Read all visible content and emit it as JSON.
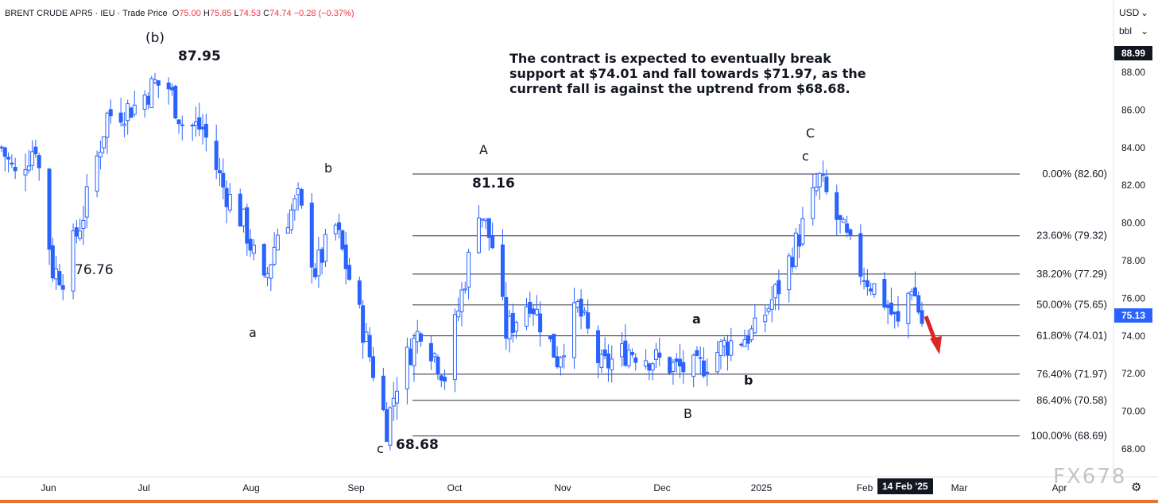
{
  "header": {
    "symbol": "BRENT CRUDE APR5",
    "sep1": "·",
    "exchange": "IEU",
    "sep2": "·",
    "type": "Trade Price",
    "o_label": "O",
    "o_value": "75.00",
    "h_label": "H",
    "h_value": "75.85",
    "l_label": "L",
    "l_value": "74.53",
    "c_label": "C",
    "c_value": "74.74",
    "change": "−0.28 (−0.37%)"
  },
  "controls": {
    "currency": "USD",
    "unit": "bbl"
  },
  "badges": {
    "top_price": "88.99",
    "last_price": "75.13",
    "cursor_date": "14 Feb '25"
  },
  "note": "The contract is expected to eventually break support at $74.01 and fall towards $71.97, as the current fall is against the uptrend from $68.68.",
  "watermark": "FX678",
  "colors": {
    "candle": "#2962ff",
    "grid_line": "#2a2e39",
    "badge_blue": "#2962ff",
    "badge_dark": "#131722",
    "arrow": "#e02424",
    "bottom_bar": "#e8742a"
  },
  "chart_data": {
    "type": "candlestick",
    "ylim": [
      66.5,
      91.5
    ],
    "y_ticks": [
      "88.00",
      "86.00",
      "84.00",
      "82.00",
      "80.00",
      "78.00",
      "76.00",
      "74.00",
      "72.00",
      "70.00",
      "68.00"
    ],
    "x_ticks": [
      "Jun",
      "Jul",
      "Aug",
      "Sep",
      "Oct",
      "Nov",
      "Dec",
      "2025",
      "Feb",
      "Mar",
      "Apr"
    ],
    "fib_levels": [
      {
        "label": "0.00% (82.60)",
        "value": 82.6
      },
      {
        "label": "23.60% (79.32)",
        "value": 79.32
      },
      {
        "label": "38.20% (77.29)",
        "value": 77.29
      },
      {
        "label": "50.00% (75.65)",
        "value": 75.65
      },
      {
        "label": "61.80% (74.01)",
        "value": 74.01
      },
      {
        "label": "76.40% (71.97)",
        "value": 71.97
      },
      {
        "label": "86.40% (70.58)",
        "value": 70.58
      },
      {
        "label": "100.00% (68.69)",
        "value": 68.69
      }
    ],
    "annotations": [
      {
        "text": "(b)"
      },
      {
        "text": "87.95"
      },
      {
        "text": "76.76"
      },
      {
        "text": "a"
      },
      {
        "text": "b"
      },
      {
        "text": "c"
      },
      {
        "text": "68.68"
      },
      {
        "text": "A"
      },
      {
        "text": "81.16"
      },
      {
        "text": "B"
      },
      {
        "text": "a"
      },
      {
        "text": "b"
      },
      {
        "text": "C"
      },
      {
        "text": "c"
      }
    ],
    "close_path": [
      {
        "date": "2024-05-20",
        "close": 84.0
      },
      {
        "date": "2024-05-24",
        "close": 82.5
      },
      {
        "date": "2024-05-30",
        "close": 84.2
      },
      {
        "date": "2024-06-04",
        "close": 77.5
      },
      {
        "date": "2024-06-07",
        "close": 77.2
      },
      {
        "date": "2024-06-13",
        "close": 80.5
      },
      {
        "date": "2024-06-20",
        "close": 85.7
      },
      {
        "date": "2024-06-28",
        "close": 86.2
      },
      {
        "date": "2024-07-04",
        "close": 87.4
      },
      {
        "date": "2024-07-08",
        "close": 87.2
      },
      {
        "date": "2024-07-12",
        "close": 85.3
      },
      {
        "date": "2024-07-18",
        "close": 85.0
      },
      {
        "date": "2024-07-24",
        "close": 81.9
      },
      {
        "date": "2024-07-30",
        "close": 80.0
      },
      {
        "date": "2024-08-05",
        "close": 76.6
      },
      {
        "date": "2024-08-09",
        "close": 79.5
      },
      {
        "date": "2024-08-15",
        "close": 81.2
      },
      {
        "date": "2024-08-20",
        "close": 77.5
      },
      {
        "date": "2024-08-26",
        "close": 79.8
      },
      {
        "date": "2024-09-04",
        "close": 73.7
      },
      {
        "date": "2024-09-10",
        "close": 69.2
      },
      {
        "date": "2024-09-13",
        "close": 71.6
      },
      {
        "date": "2024-09-20",
        "close": 74.5
      },
      {
        "date": "2024-09-27",
        "close": 71.9
      },
      {
        "date": "2024-10-04",
        "close": 78.0
      },
      {
        "date": "2024-10-07",
        "close": 80.9
      },
      {
        "date": "2024-10-11",
        "close": 78.8
      },
      {
        "date": "2024-10-15",
        "close": 74.2
      },
      {
        "date": "2024-10-22",
        "close": 76.0
      },
      {
        "date": "2024-10-30",
        "close": 72.8
      },
      {
        "date": "2024-11-05",
        "close": 75.5
      },
      {
        "date": "2024-11-12",
        "close": 72.3
      },
      {
        "date": "2024-11-20",
        "close": 73.3
      },
      {
        "date": "2024-11-27",
        "close": 72.8
      },
      {
        "date": "2024-12-04",
        "close": 72.3
      },
      {
        "date": "2024-12-10",
        "close": 72.2
      },
      {
        "date": "2024-12-18",
        "close": 73.5
      },
      {
        "date": "2024-12-27",
        "close": 74.2
      },
      {
        "date": "2025-01-03",
        "close": 76.6
      },
      {
        "date": "2025-01-10",
        "close": 79.8
      },
      {
        "date": "2025-01-15",
        "close": 82.3
      },
      {
        "date": "2025-01-20",
        "close": 80.2
      },
      {
        "date": "2025-01-27",
        "close": 77.5
      },
      {
        "date": "2025-02-03",
        "close": 75.9
      },
      {
        "date": "2025-02-07",
        "close": 74.5
      },
      {
        "date": "2025-02-11",
        "close": 76.8
      },
      {
        "date": "2025-02-14",
        "close": 74.7
      }
    ],
    "last_close": 75.13
  }
}
